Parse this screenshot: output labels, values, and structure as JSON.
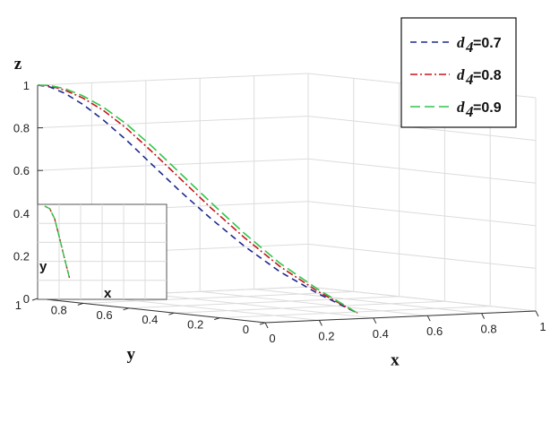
{
  "chart_data": {
    "type": "line",
    "projection": "3d",
    "xlabel": "x",
    "ylabel": "y",
    "zlabel": "z",
    "xlim": [
      0,
      1
    ],
    "ylim": [
      0,
      1
    ],
    "zlim": [
      0,
      1
    ],
    "x_ticks": [
      "0",
      "0.2",
      "0.4",
      "0.6",
      "0.8",
      "1"
    ],
    "y_ticks": [
      "0",
      "0.2",
      "0.4",
      "0.6",
      "0.8",
      "1"
    ],
    "z_ticks": [
      "0",
      "0.2",
      "0.4",
      "0.6",
      "0.8",
      "1"
    ],
    "grid": true,
    "legend_position": "top-right",
    "series": [
      {
        "name": "=0.7",
        "symbol": "d",
        "subscript": "4",
        "color": "#1c2a8c",
        "dash": "dashed",
        "x": [
          0.0,
          0.04,
          0.08,
          0.12,
          0.16,
          0.2,
          0.24,
          0.28,
          0.32,
          0.36,
          0.4,
          0.44,
          0.48
        ],
        "y": [
          1.0,
          0.9939,
          0.9756,
          0.9452,
          0.9029,
          0.8489,
          0.7832,
          0.7061,
          0.6181,
          0.5195,
          0.4108,
          0.2925,
          0.1652
        ],
        "z": [
          1.0,
          0.99,
          0.96,
          0.91,
          0.84,
          0.75,
          0.64,
          0.52,
          0.4,
          0.28,
          0.17,
          0.08,
          0.0
        ]
      },
      {
        "name": "=0.8",
        "symbol": "d",
        "subscript": "4",
        "color": "#c8151b",
        "dash": "dashdot",
        "x": [
          0.0,
          0.04,
          0.08,
          0.12,
          0.16,
          0.2,
          0.24,
          0.28,
          0.32,
          0.36,
          0.4,
          0.44,
          0.48
        ],
        "y": [
          1.0,
          0.9939,
          0.9756,
          0.9452,
          0.9029,
          0.8489,
          0.7832,
          0.7061,
          0.6181,
          0.5195,
          0.4108,
          0.2925,
          0.1652
        ],
        "z": [
          1.0,
          0.995,
          0.975,
          0.94,
          0.885,
          0.805,
          0.7,
          0.58,
          0.45,
          0.32,
          0.195,
          0.09,
          0.0
        ]
      },
      {
        "name": "=0.9",
        "symbol": "d",
        "subscript": "4",
        "color": "#2fc64a",
        "dash": "longdash",
        "x": [
          0.0,
          0.04,
          0.08,
          0.12,
          0.16,
          0.2,
          0.24,
          0.28,
          0.32,
          0.36,
          0.4,
          0.44,
          0.48
        ],
        "y": [
          1.0,
          0.9939,
          0.9756,
          0.9452,
          0.9029,
          0.8489,
          0.7832,
          0.7061,
          0.6181,
          0.5195,
          0.4108,
          0.2925,
          0.1652
        ],
        "z": [
          1.0,
          0.997,
          0.982,
          0.95,
          0.9,
          0.825,
          0.725,
          0.605,
          0.475,
          0.34,
          0.21,
          0.1,
          0.0
        ]
      }
    ],
    "inset": {
      "xlabel": "x",
      "ylabel": "y",
      "series_y": [
        1.0,
        0.97,
        0.85,
        0.62,
        0.38,
        0.15
      ]
    }
  }
}
